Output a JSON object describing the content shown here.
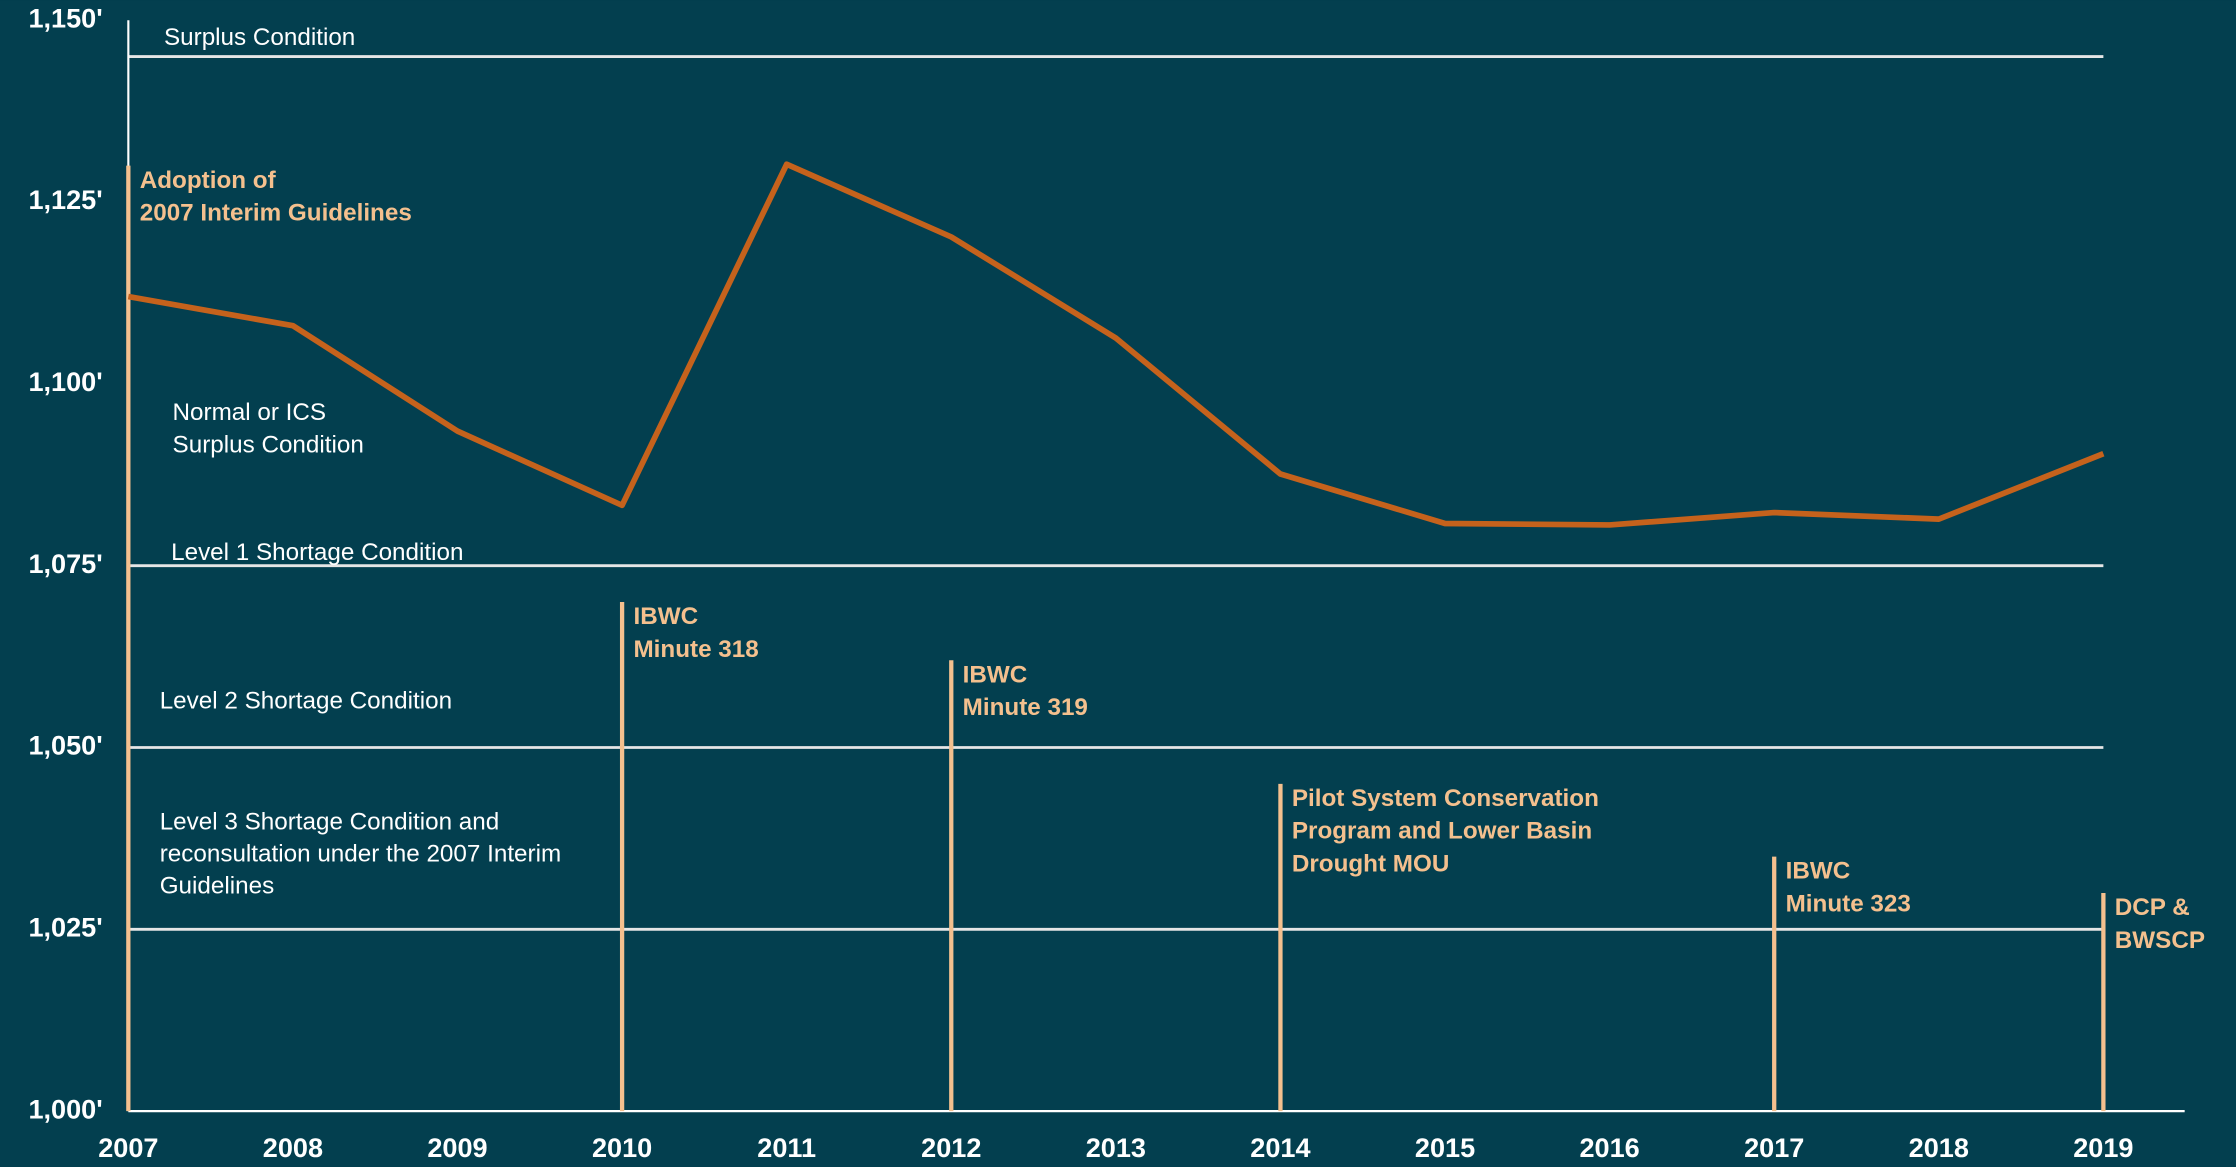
{
  "chart_data": {
    "type": "line",
    "x": [
      2007,
      2008,
      2009,
      2010,
      2011,
      2012,
      2013,
      2014,
      2015,
      2016,
      2017,
      2018,
      2019
    ],
    "values": [
      1112,
      1108,
      1093.5,
      1083.3,
      1130.2,
      1120.2,
      1106.3,
      1087.6,
      1080.8,
      1080.6,
      1082.3,
      1081.4,
      1090.4
    ],
    "color": "#c5621c",
    "xlim": [
      2007,
      2019
    ],
    "xticks": [
      2007,
      2008,
      2009,
      2010,
      2011,
      2012,
      2013,
      2014,
      2015,
      2016,
      2017,
      2018,
      2019
    ],
    "ylim": [
      1000,
      1150
    ],
    "yticks": [
      {
        "value": 1000,
        "label": "1,000'"
      },
      {
        "value": 1025,
        "label": "1,025'"
      },
      {
        "value": 1050,
        "label": "1,050'"
      },
      {
        "value": 1075,
        "label": "1,075'"
      },
      {
        "value": 1100,
        "label": "1,100'"
      },
      {
        "value": 1125,
        "label": "1,125'"
      },
      {
        "value": 1150,
        "label": "1,150'"
      }
    ],
    "thresholds": [
      1145,
      1075,
      1050,
      1025
    ],
    "zone_labels": [
      [
        "Surplus Condition"
      ],
      [
        "Normal or ICS",
        "Surplus Condition"
      ],
      [
        "Level 1 Shortage Condition"
      ],
      [
        "Level 2 Shortage Condition"
      ],
      [
        "Level 3 Shortage Condition and",
        "reconsultation under the 2007 Interim",
        "Guidelines"
      ]
    ],
    "annotations": [
      {
        "x": 2007,
        "y": 1130,
        "lines": [
          "Adoption of",
          "2007 Interim Guidelines"
        ]
      },
      {
        "x": 2010,
        "y": 1070,
        "lines": [
          "IBWC",
          "Minute 318"
        ]
      },
      {
        "x": 2012,
        "y": 1062,
        "lines": [
          "IBWC",
          "Minute 319"
        ]
      },
      {
        "x": 2014,
        "y": 1045,
        "lines": [
          "Pilot System Conservation",
          "Program and Lower Basin",
          "Drought MOU"
        ]
      },
      {
        "x": 2017,
        "y": 1035,
        "lines": [
          "IBWC",
          "Minute 323"
        ]
      },
      {
        "x": 2019,
        "y": 1030,
        "lines": [
          "DCP &",
          "BWSCP"
        ]
      }
    ],
    "annotation_color": "#f4c08e"
  }
}
